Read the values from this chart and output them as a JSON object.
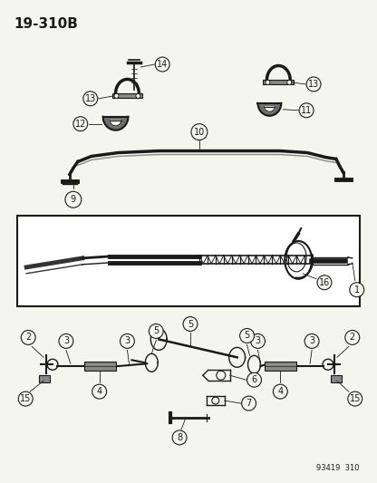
{
  "title": "19-310B",
  "footer": "93419  310",
  "bg_color": "#f5f5f0",
  "line_color": "#1a1a1a",
  "fig_width": 4.16,
  "fig_height": 5.33,
  "dpi": 100
}
